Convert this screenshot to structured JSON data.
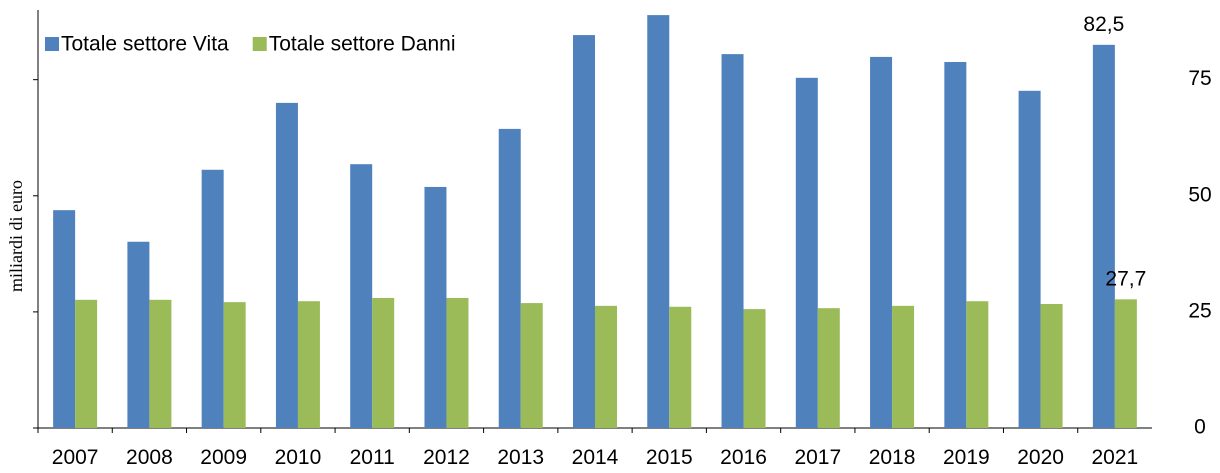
{
  "chart_data": {
    "type": "bar",
    "y_label": "miliardi di euro",
    "categories": [
      "2007",
      "2008",
      "2009",
      "2010",
      "2011",
      "2012",
      "2013",
      "2014",
      "2015",
      "2016",
      "2017",
      "2018",
      "2019",
      "2020",
      "2021"
    ],
    "series": [
      {
        "name": "Totale settore Vita",
        "color": "#4f81bd",
        "values": [
          46.9,
          40.1,
          55.6,
          70.0,
          56.8,
          51.9,
          64.4,
          84.6,
          88.9,
          80.5,
          75.4,
          79.9,
          78.8,
          72.6,
          82.5
        ],
        "value_labels": [
          null,
          null,
          null,
          null,
          null,
          null,
          null,
          null,
          null,
          null,
          null,
          null,
          null,
          null,
          "82,5"
        ]
      },
      {
        "name": "Totale settore Danni",
        "color": "#9bbb59",
        "values": [
          27.6,
          27.6,
          27.1,
          27.3,
          28.0,
          28.0,
          26.9,
          26.3,
          26.1,
          25.6,
          25.8,
          26.3,
          27.3,
          26.7,
          27.7
        ],
        "value_labels": [
          null,
          null,
          null,
          null,
          null,
          null,
          null,
          null,
          null,
          null,
          null,
          null,
          null,
          null,
          "27,7"
        ]
      }
    ],
    "ylim": [
      0,
      90
    ],
    "yticks": [
      0,
      25,
      50,
      75
    ],
    "y_axis_side": "right",
    "legend": "top-left",
    "grid": false
  }
}
